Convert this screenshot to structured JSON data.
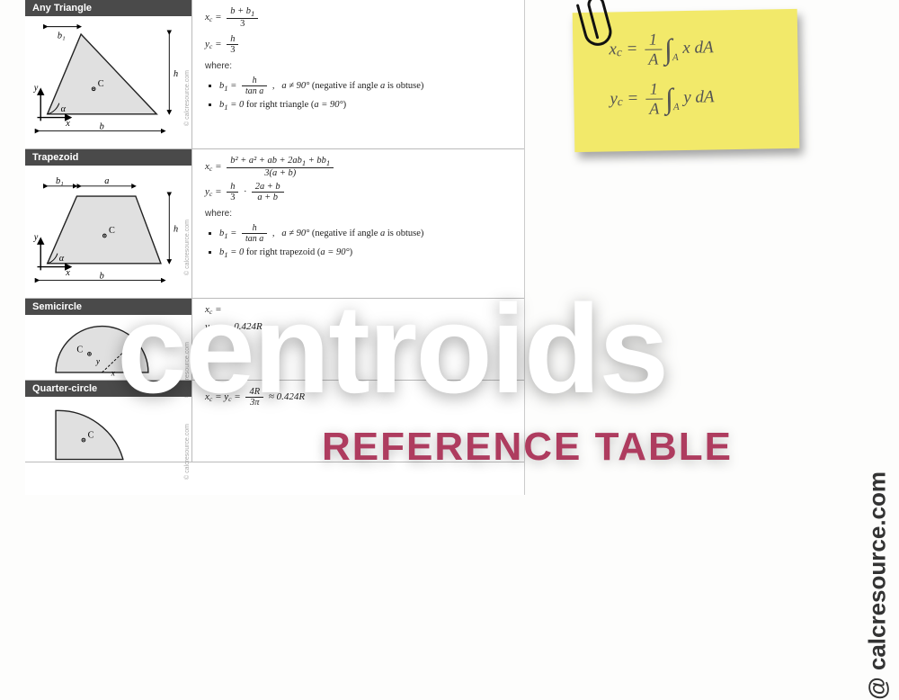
{
  "title_main": "centroids",
  "title_sub": "REFERENCE TABLE",
  "site_credit": "@ calcresource.com",
  "diagram_credit": "© calcresource.com",
  "sticky": {
    "bg": "#f2e96a",
    "text_color": "#535353",
    "line1_html": "x<sub class='sub-c'>c</sub> = <span class='frac'><span class='n'>1</span><span class='d'>A</span></span><span class='int'>∫</span><span class='sub'>A</span> x dA",
    "line2_html": "y<sub class='sub-c'>c</sub> = <span class='frac'><span class='n'>1</span><span class='d'>A</span></span><span class='int'>∫</span><span class='sub'>A</span> y dA"
  },
  "rows": [
    {
      "name": "Any Triangle",
      "diagram_svg": "<svg viewBox='0 0 185 135'><defs><marker id='ah1' markerWidth='6' markerHeight='6' refX='5' refY='3' orient='auto'><path d='M0,0 L6,3 L0,6 Z' fill='#000'/></marker></defs><polygon points='20,110 150,110 60,15' fill='#e0e0e0' stroke='#222' stroke-width='1.5'/><path d='M 20,110 A 20 20 0 0 0 34,97' fill='none' stroke='#000'/><text x='36' y='107' font-size='11' font-style='italic'>α</text><circle cx='75' cy='80' r='2' fill='none' stroke='#000'/><circle cx='75' cy='80' r='0.8' fill='#000'/><text x='80' y='77' font-size='11'>C</text><line x1='10' y1='130' x2='160' y2='130' stroke='#000' marker-end='url(#ah1)' marker-start='url(#ah1)'/><text x='82' y='128' font-size='11' font-style='italic'>b</text><line x1='165' y1='15' x2='165' y2='110' stroke='#000' marker-end='url(#ah1)' marker-start='url(#ah1)'/><text x='170' y='65' font-size='11' font-style='italic'>h</text><line x1='20' y1='6' x2='60' y2='6' stroke='#000' marker-end='url(#ah1)' marker-start='url(#ah1)'/><text x='32' y='20' font-size='11' font-style='italic'>b₁</text><line x1='12' y1='118' x2='12' y2='80' stroke='#000' stroke-width='1.5' marker-end='url(#ah1)'/><text x='4' y='82' font-size='11' font-style='italic'>y</text><line x1='8' y1='114' x2='48' y2='114' stroke='#000' stroke-width='1.5' marker-end='url(#ah1)'/><text x='42' y='124' font-size='11' font-style='italic'>x</text></svg>",
      "formulas_html": "<div class='math'>x<sub class='sub-c'>c</sub> = <span class='frac'><span class='n'>b + b<sub>1</sub></span><span class='d norm'>3</span></span></div><div class='math' style='margin-top:4px'>y<sub class='sub-c'>c</sub> = <span class='frac'><span class='n'>h</span><span class='d norm'>3</span></span></div>",
      "where_html": "<li class='math'>b<sub>1</sub> = <span class='frac'><span class='n'>h</span><span class='d'>tan a</span></span> , &nbsp; a ≠ 90° <span class='norm'>(negative if angle </span>a<span class='norm'> is obtuse)</span></li><li class='math'>b<sub>1</sub> = 0 <span class='norm'>for right triangle (</span>a = 90°<span class='norm'>)</span></li>"
    },
    {
      "name": "Trapezoid",
      "diagram_svg": "<svg viewBox='0 0 185 135'><defs><marker id='ah2' markerWidth='6' markerHeight='6' refX='5' refY='3' orient='auto'><path d='M0,0 L6,3 L0,6 Z' fill='#000'/></marker></defs><polygon points='20,110 155,110 125,30 55,30' fill='#e0e0e0' stroke='#222' stroke-width='1.5'/><path d='M 20,110 A 18 18 0 0 0 32,98' fill='none' stroke='#000'/><text x='34' y='107' font-size='11' font-style='italic'>α</text><circle cx='88' cy='77' r='2' fill='none' stroke='#000'/><circle cx='88' cy='77' r='0.8' fill='#000'/><text x='93' y='74' font-size='11'>C</text><line x1='10' y1='130' x2='160' y2='130' stroke='#000' marker-end='url(#ah2)' marker-start='url(#ah2)'/><text x='82' y='128' font-size='11' font-style='italic'>b</text><line x1='165' y1='30' x2='165' y2='110' stroke='#000' marker-end='url(#ah2)' marker-start='url(#ah2)'/><text x='170' y='72' font-size='11' font-style='italic'>h</text><line x1='20' y1='18' x2='55' y2='18' stroke='#000' marker-end='url(#ah2)' marker-start='url(#ah2)'/><text x='30' y='15' font-size='11' font-style='italic'>b₁</text><line x1='60' y1='18' x2='125' y2='18' stroke='#000' marker-end='url(#ah2)' marker-start='url(#ah2)'/><text x='88' y='15' font-size='11' font-style='italic'>a</text><line x1='12' y1='118' x2='12' y2='80' stroke='#000' stroke-width='1.5' marker-end='url(#ah2)'/><text x='4' y='82' font-size='11' font-style='italic'>y</text><line x1='8' y1='114' x2='48' y2='114' stroke='#000' stroke-width='1.5' marker-end='url(#ah2)'/><text x='42' y='124' font-size='11' font-style='italic'>x</text></svg>",
      "formulas_html": "<div class='math'>x<sub class='sub-c'>c</sub> = <span class='frac'><span class='n'>b² + a² + ab + 2ab<sub>1</sub> + bb<sub>1</sub></span><span class='d'>3(a + b)</span></span></div><div class='math' style='margin-top:2px'>y<sub class='sub-c'>c</sub> = <span class='frac'><span class='n'>h</span><span class='d norm'>3</span></span> · <span class='frac'><span class='n'>2a + b</span><span class='d'>a + b</span></span></div>",
      "where_html": "<li class='math'>b<sub>1</sub> = <span class='frac'><span class='n'>h</span><span class='d'>tan a</span></span> , &nbsp; a ≠ 90° <span class='norm'>(negative if angle </span>a<span class='norm'> is obtuse)</span></li><li class='math'>b<sub>1</sub> = 0 <span class='norm'>for right trapezoid (</span>a = 90°<span class='norm'>)</span></li>"
    },
    {
      "name": "Semicircle",
      "diagram_svg": "<svg viewBox='0 0 185 70'><path d='M 30,62 A 55 55 0 0 1 140,62 Z' fill='#e0e0e0' stroke='#222' stroke-width='1.5'/><line x1='85' y1='62' x2='125' y2='24' stroke='#000' stroke-dasharray='3,2'/><text x='110' y='42' font-size='11' font-style='italic'>R</text><circle cx='70' cy='40' r='2' fill='none' stroke='#000'/><circle cx='70' cy='40' r='0.8' fill='#000'/><text x='55' y='38' font-size='11'>C</text><text x='78' y='52' font-size='10' font-style='italic'>y</text><text x='96' y='66' font-size='10' font-style='italic'>x</text></svg>",
      "formulas_html": "<div class='math'>x<sub class='sub-c'>c</sub> =</div><div class='math' style='margin-top:6px'>y<sub class='sub-c'>c</sub> = &nbsp; &nbsp; 0.424R</div>",
      "where_html": ""
    },
    {
      "name": "Quarter-circle",
      "diagram_svg": "<svg viewBox='0 0 185 70'><path d='M 30,68 L 30,10 A 80 80 0 0 1 110,68 Z' fill='#e0e0e0' stroke='#222' stroke-width='1.5'/><circle cx='63' cy='45' r='2' fill='none' stroke='#000'/><circle cx='63' cy='45' r='0.8' fill='#000'/><text x='68' y='42' font-size='11'>C</text></svg>",
      "formulas_html": "<div class='math'>x<sub class='sub-c'>c</sub> = y<sub class='sub-c'>c</sub> = <span class='frac'><span class='n'>4R</span><span class='d'>3π</span></span> ≈ 0.424R</div>",
      "where_html": ""
    }
  ],
  "colors": {
    "header_bg": "#4a4a4a",
    "shape_fill": "#e0e0e0",
    "accent": "#ae3c5f"
  }
}
